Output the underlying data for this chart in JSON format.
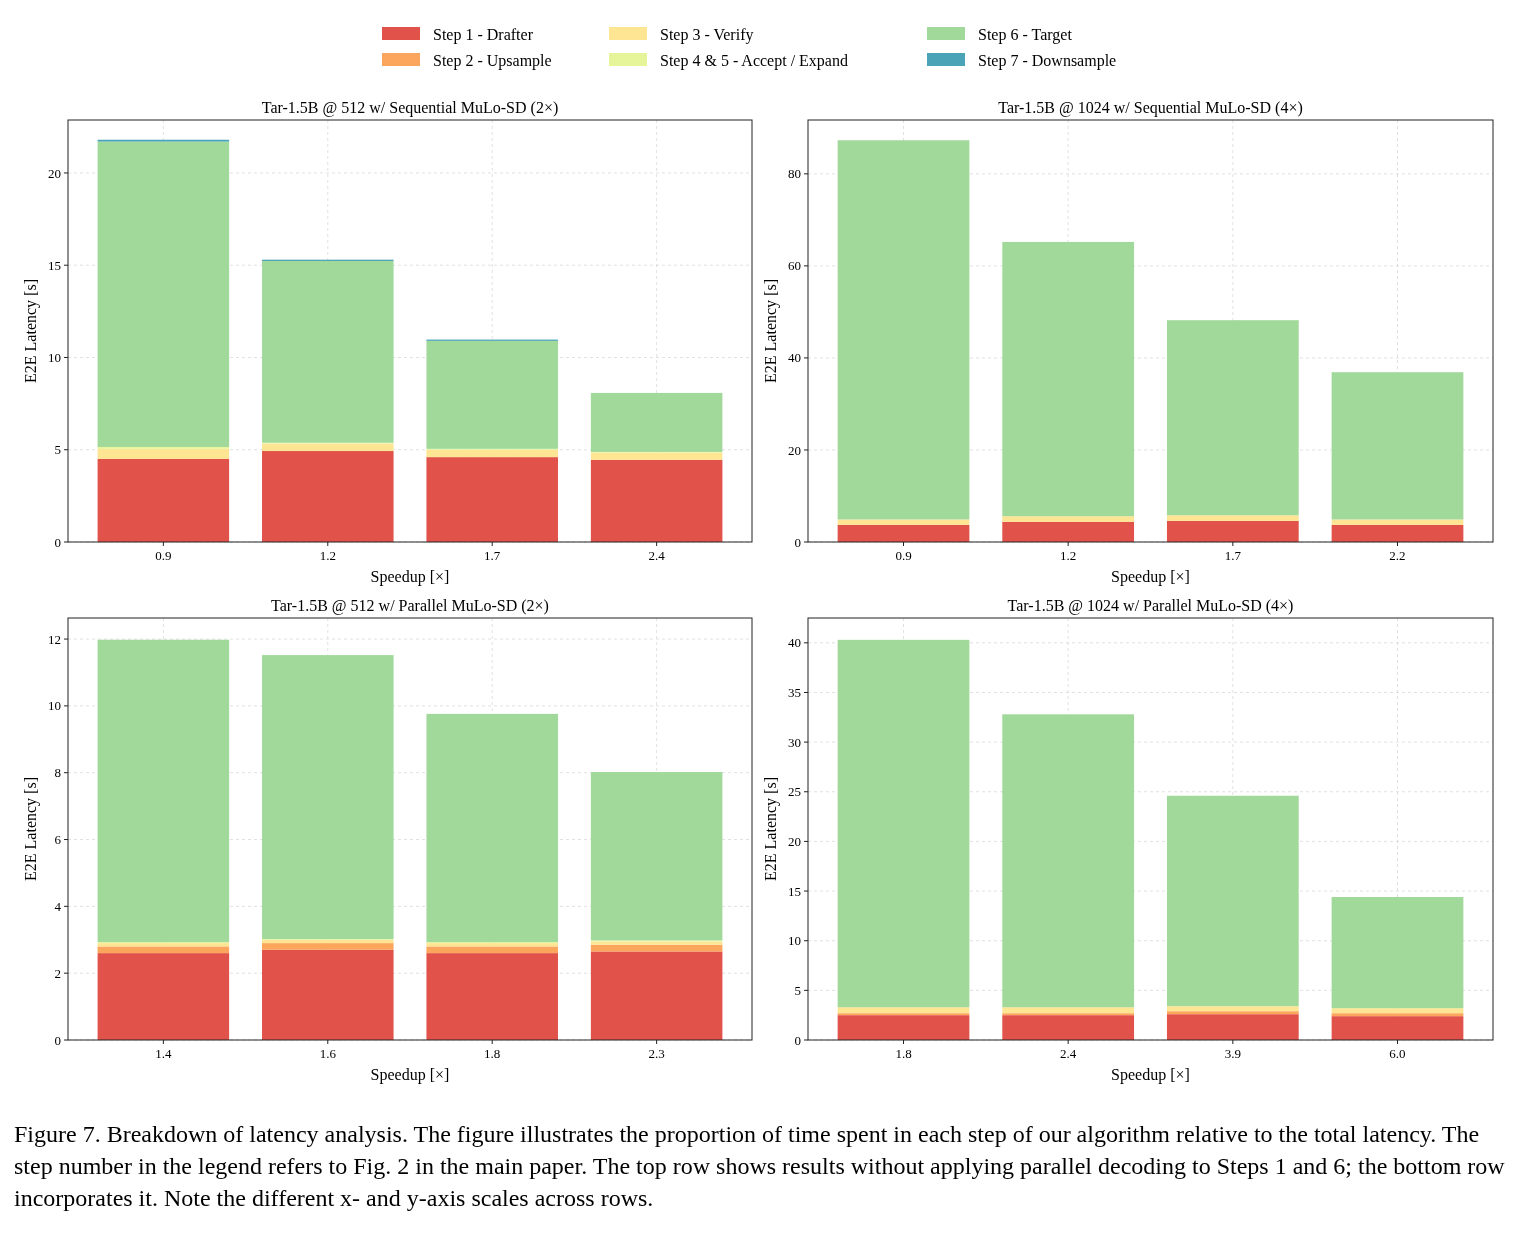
{
  "chart_data": [
    {
      "type": "bar",
      "stacked": true,
      "title": "Tar-1.5B @ 512 w/ Sequential MuLo-SD (2×)",
      "xlabel": "Speedup [×]",
      "ylabel": "E2E Latency [s]",
      "categories": [
        "0.9",
        "1.2",
        "1.7",
        "2.4"
      ],
      "ylim": [
        0,
        22.87
      ],
      "yticks": [
        0,
        5,
        10,
        15,
        20
      ],
      "grid": true,
      "legend": "top",
      "series": [
        {
          "name": "Step 1 - Drafter",
          "color": "#e0524a",
          "values": [
            4.5,
            4.93,
            4.6,
            4.45
          ]
        },
        {
          "name": "Step 2 - Upsample",
          "color": "#fca55d",
          "values": [
            0,
            0,
            0,
            0
          ]
        },
        {
          "name": "Step 3 - Verify",
          "color": "#fee593",
          "values": [
            0.55,
            0.4,
            0.4,
            0.4
          ]
        },
        {
          "name": "Step 4 & 5 - Accept / Expand",
          "color": "#e6f59a",
          "values": [
            0.1,
            0.05,
            0.05,
            0.03
          ]
        },
        {
          "name": "Step 6 - Target",
          "color": "#a1d99b",
          "values": [
            16.55,
            9.85,
            5.85,
            3.2
          ]
        },
        {
          "name": "Step 7 - Downsample",
          "color": "#4ba3b8",
          "values": [
            0.1,
            0.07,
            0.07,
            0
          ]
        }
      ]
    },
    {
      "type": "bar",
      "stacked": true,
      "title": "Tar-1.5B @ 1024 w/ Sequential MuLo-SD (4×)",
      "xlabel": "Speedup [×]",
      "ylabel": "E2E Latency [s]",
      "categories": [
        "0.9",
        "1.2",
        "1.7",
        "2.2"
      ],
      "ylim": [
        0,
        91.7
      ],
      "yticks": [
        0,
        20,
        40,
        60,
        80
      ],
      "grid": true,
      "series": [
        {
          "color": "#e0524a",
          "values": [
            3.7,
            4.4,
            4.6,
            3.7
          ]
        },
        {
          "color": "#fca55d",
          "values": [
            0,
            0,
            0,
            0
          ]
        },
        {
          "color": "#fee593",
          "values": [
            1.2,
            1.2,
            1.2,
            1.2
          ]
        },
        {
          "color": "#a1d99b",
          "values": [
            82.4,
            59.6,
            42.4,
            32.0
          ]
        },
        {
          "color": "#4ba3b8",
          "values": [
            0,
            0,
            0,
            0
          ]
        }
      ]
    },
    {
      "type": "bar",
      "stacked": true,
      "title": "Tar-1.5B @ 512 w/ Parallel MuLo-SD (2×)",
      "xlabel": "Speedup [×]",
      "ylabel": "E2E Latency [s]",
      "categories": [
        "1.4",
        "1.6",
        "1.8",
        "2.3"
      ],
      "ylim": [
        0,
        12.63
      ],
      "yticks": [
        0,
        2,
        4,
        6,
        8,
        10,
        12
      ],
      "grid": true,
      "series": [
        {
          "color": "#e0524a",
          "values": [
            2.6,
            2.7,
            2.6,
            2.65
          ]
        },
        {
          "color": "#fca55d",
          "values": [
            0.2,
            0.2,
            0.2,
            0.2
          ]
        },
        {
          "color": "#fee593",
          "values": [
            0.1,
            0.1,
            0.1,
            0.1
          ]
        },
        {
          "color": "#e6f59a",
          "values": [
            0.03,
            0.02,
            0.03,
            0.03
          ]
        },
        {
          "color": "#a1d99b",
          "values": [
            9.05,
            8.5,
            6.83,
            5.04
          ]
        },
        {
          "color": "#4ba3b8",
          "values": [
            0,
            0,
            0,
            0
          ]
        }
      ]
    },
    {
      "type": "bar",
      "stacked": true,
      "title": "Tar-1.5B @ 1024 w/ Parallel MuLo-SD (4×)",
      "xlabel": "Speedup [×]",
      "ylabel": "E2E Latency [s]",
      "categories": [
        "1.8",
        "2.4",
        "3.9",
        "6.0"
      ],
      "ylim": [
        0,
        42.5
      ],
      "yticks": [
        0,
        5,
        10,
        15,
        20,
        25,
        30,
        35,
        40
      ],
      "grid": true,
      "annotations": [
        "Figure 7. Breakdown of latency analysis. The figure illustrates the proportion of time spent in each step of our algorithm relative to the total latency. The step number in the legend refers to Fig. 2 in the main paper. The top row shows results without applying parallel decoding to Steps 1 and 6; the bottom row incorporates it. Note the different x- and y-axis scales across rows."
      ],
      "series": [
        {
          "color": "#e0524a",
          "values": [
            2.5,
            2.5,
            2.6,
            2.4
          ]
        },
        {
          "color": "#fca55d",
          "values": [
            0.2,
            0.2,
            0.3,
            0.3
          ]
        },
        {
          "color": "#fee593",
          "values": [
            0.6,
            0.6,
            0.5,
            0.5
          ]
        },
        {
          "color": "#a1d99b",
          "values": [
            37.0,
            29.5,
            21.2,
            11.2
          ]
        },
        {
          "color": "#4ba3b8",
          "values": [
            0,
            0,
            0,
            0
          ]
        }
      ]
    }
  ]
}
